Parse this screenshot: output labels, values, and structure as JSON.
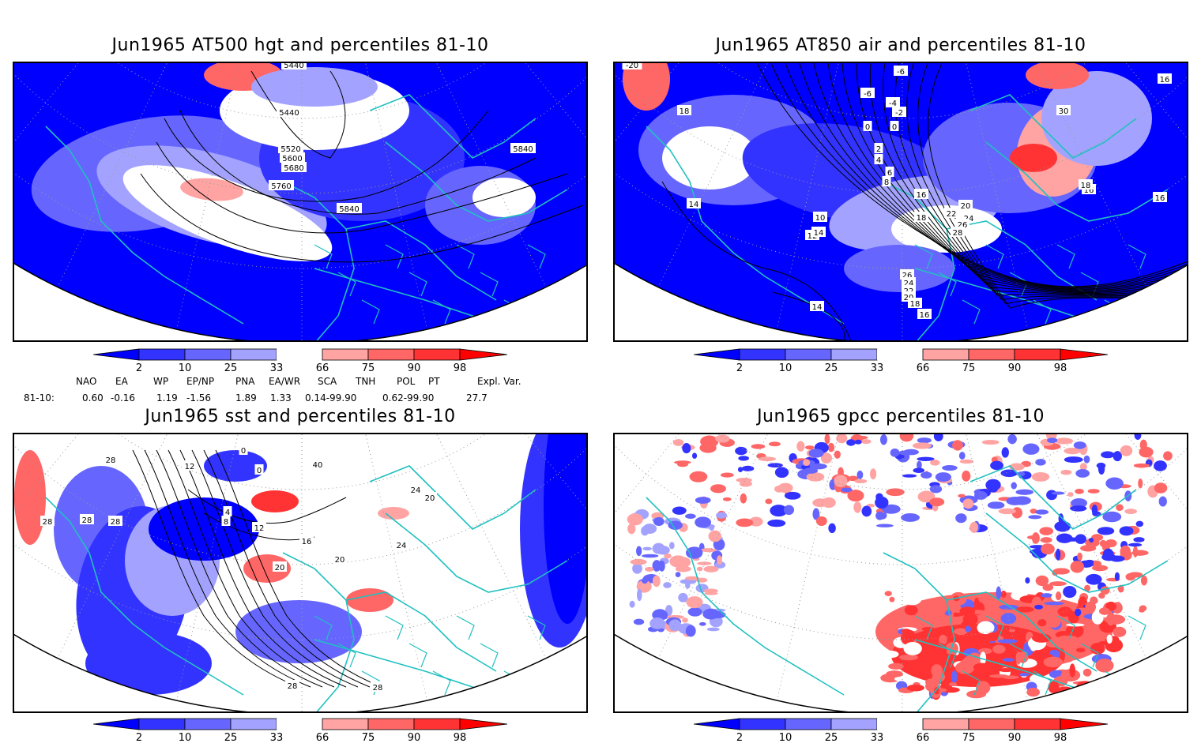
{
  "panels": [
    {
      "title": "Jun1965 AT500 hgt and percentiles 81-10",
      "contour_labels": [
        "5440",
        "5440",
        "5520",
        "5600",
        "5680",
        "5760",
        "5840",
        "5840"
      ]
    },
    {
      "title": "Jun1965 AT850 air and percentiles 81-10",
      "contour_labels": [
        "-20",
        "-6",
        "-6",
        "-4",
        "-2",
        "0",
        "0",
        "2",
        "4",
        "6",
        "8",
        "10",
        "12",
        "14",
        "14",
        "16",
        "16",
        "16",
        "18",
        "18",
        "18",
        "20",
        "22",
        "24",
        "26",
        "28",
        "30",
        "26",
        "24",
        "22",
        "20",
        "18",
        "16",
        "14",
        "16",
        "18"
      ]
    },
    {
      "title": "Jun1965 sst and percentiles 81-10",
      "contour_labels": [
        "28",
        "28",
        "28",
        "28",
        "12",
        "0",
        "0",
        "4",
        "8",
        "12",
        "16",
        "20",
        "20",
        "24",
        "24",
        "28",
        "28",
        "40",
        "20"
      ]
    },
    {
      "title": "Jun1965 gpcc percentiles 81-10",
      "contour_labels": []
    }
  ],
  "colorbar": {
    "labels": [
      "2",
      "10",
      "25",
      "33",
      "66",
      "75",
      "90",
      "98"
    ],
    "colors": {
      "low": [
        "#0000ff",
        "#3333ff",
        "#6666ff",
        "#a3a3ff"
      ],
      "high": [
        "#ffa3a3",
        "#ff6666",
        "#ff3333",
        "#ff0000"
      ]
    }
  },
  "indices": {
    "headers": [
      "NAO",
      "EA",
      "WP",
      "EP/NP",
      "PNA",
      "EA/WR",
      "SCA",
      "TNH",
      "POL",
      "PT",
      "Expl. Var."
    ],
    "row_label": "81-10:",
    "values": [
      "0.60",
      "-0.16",
      "1.19",
      "-1.56",
      "1.89",
      "1.33",
      "0.14-99.90",
      "0.62-99.90",
      "27.7"
    ]
  },
  "colors": {
    "coast": "#20c0c0",
    "contour": "#000000",
    "grid": "#999999"
  }
}
